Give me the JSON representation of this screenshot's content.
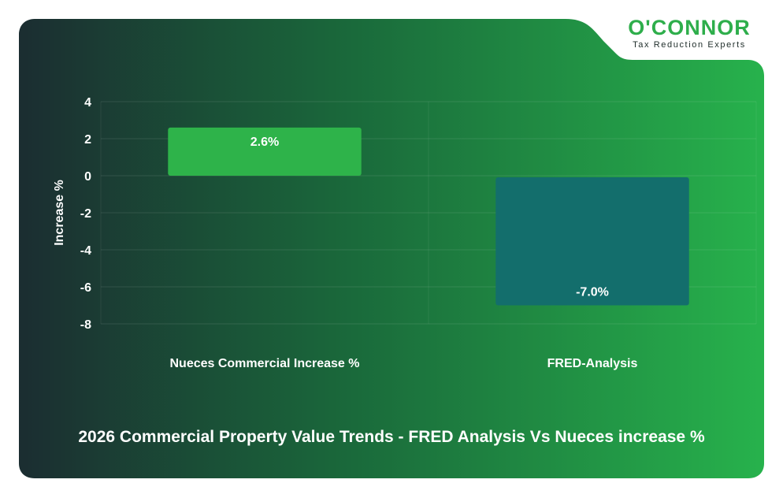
{
  "brand": {
    "name": "O'CONNOR",
    "tagline": "Tax Reduction Experts"
  },
  "caption": "2026 Commercial Property Value Trends - FRED Analysis Vs Nueces increase %",
  "colors": {
    "bg_dark": "#1b2f31",
    "bg_green": "#27b04b",
    "positive_bar": "#2eb34a",
    "negative_bar": "#136e6c",
    "brand_green": "#2eae4b"
  },
  "chart_data": {
    "type": "bar",
    "categories": [
      "Nueces Commercial Increase %",
      "FRED-Analysis"
    ],
    "values": [
      2.6,
      -7.0
    ],
    "value_labels": [
      "2.6%",
      "-7.0%"
    ],
    "ylabel": "Increase %",
    "ylim": [
      -8,
      4
    ],
    "yticks": [
      4,
      2,
      0,
      -2,
      -4,
      -6,
      -8
    ],
    "grid": true
  }
}
